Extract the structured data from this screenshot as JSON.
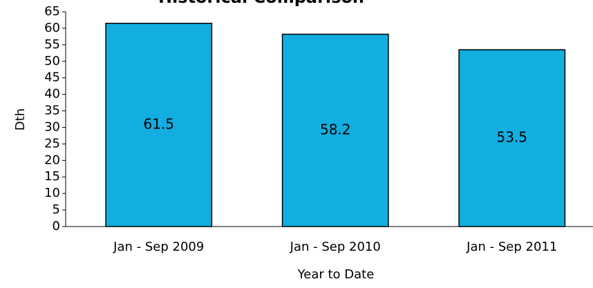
{
  "chart_data": {
    "type": "bar",
    "title": "Historical Comparison",
    "categories": [
      "Jan - Sep 2009",
      "Jan - Sep 2010",
      "Jan - Sep 2011"
    ],
    "values": [
      61.5,
      58.2,
      53.5
    ],
    "color": "#12aee0",
    "ylabel": "Dth",
    "xlabel": "Year to Date",
    "ylim": [
      0,
      65
    ],
    "yticks": [
      0,
      5,
      10,
      15,
      20,
      25,
      30,
      35,
      40,
      45,
      50,
      55,
      60,
      65
    ]
  }
}
